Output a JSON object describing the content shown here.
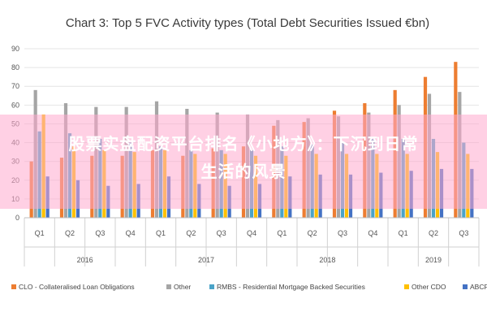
{
  "chart_data": {
    "type": "bar",
    "title": "Chart 3: Top 5 FVC Activity types (Total Debt Securities Issued €bn)",
    "ylim": [
      0,
      90
    ],
    "yticks": [
      0,
      10,
      20,
      30,
      40,
      50,
      60,
      70,
      80,
      90
    ],
    "grid": true,
    "legend_position": "bottom",
    "categories": [
      "Q1",
      "Q2",
      "Q3",
      "Q4",
      "Q1",
      "Q2",
      "Q3",
      "Q4",
      "Q1",
      "Q2",
      "Q3",
      "Q4",
      "Q1",
      "Q2",
      "Q3"
    ],
    "years": [
      {
        "label": "2016",
        "count": 4
      },
      {
        "label": "2017",
        "count": 4
      },
      {
        "label": "2018",
        "count": 4
      },
      {
        "label": "2019",
        "count": 3
      }
    ],
    "series": [
      {
        "name": "CLO - Collateralised Loan Obligations",
        "color": "#ed7d31",
        "values": [
          30,
          32,
          33,
          33,
          36,
          33,
          37,
          38,
          49,
          51,
          57,
          61,
          68,
          75,
          83
        ]
      },
      {
        "name": "Other",
        "color": "#a5a5a5",
        "values": [
          68,
          61,
          59,
          59,
          62,
          58,
          56,
          55,
          52,
          53,
          54,
          56,
          60,
          66,
          67
        ]
      },
      {
        "name": "RMBS - Residential Mortgage Backed Securities",
        "color": "#4aa3c8",
        "values": [
          46,
          45,
          42,
          40,
          38,
          36,
          36,
          36,
          38,
          39,
          40,
          42,
          42,
          42,
          40
        ]
      },
      {
        "name": "Other CDO",
        "color": "#ffc000",
        "values": [
          55,
          38,
          36,
          35,
          36,
          34,
          34,
          33,
          33,
          34,
          34,
          34,
          34,
          35,
          34
        ]
      },
      {
        "name": "ABCP",
        "color": "#4472c4",
        "values": [
          22,
          20,
          17,
          18,
          22,
          18,
          17,
          18,
          22,
          23,
          23,
          24,
          25,
          26,
          26
        ]
      }
    ]
  },
  "overlay": {
    "line1": "股票实盘配资平台排名《小地方》：下沉到日常",
    "line2": "生活的风景"
  }
}
